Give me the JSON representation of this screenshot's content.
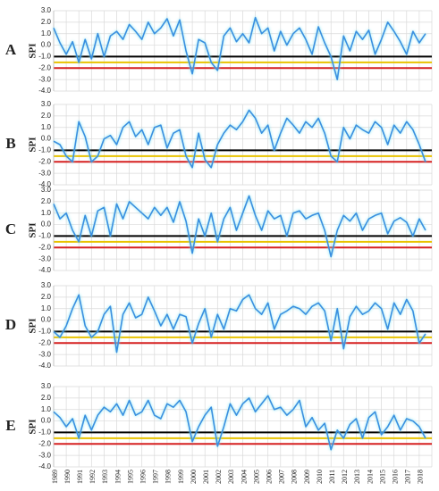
{
  "chart_data": [
    {
      "type": "line",
      "label": "A",
      "ylabel": "SPI",
      "ylim": [
        -4,
        3
      ],
      "yticks": [
        {
          "value": 3,
          "label": "3.0"
        },
        {
          "value": 2,
          "label": "2.0"
        },
        {
          "value": 1,
          "label": "1.0"
        },
        {
          "value": 0,
          "label": "0.0"
        },
        {
          "value": -1,
          "label": "-1.0"
        },
        {
          "value": -2,
          "label": "-2.0"
        },
        {
          "value": -3,
          "label": "-3.0"
        },
        {
          "value": -4,
          "label": "-4.0"
        }
      ],
      "thresholds": [
        {
          "value": -1,
          "color": "#000000"
        },
        {
          "value": -1.5,
          "color": "#e8c200"
        },
        {
          "value": -2,
          "color": "#d62020"
        }
      ],
      "x": [
        1989,
        1989.5,
        1990,
        1990.5,
        1991,
        1991.5,
        1992,
        1992.5,
        1993,
        1993.5,
        1994,
        1994.5,
        1995,
        1995.5,
        1996,
        1996.5,
        1997,
        1997.5,
        1998,
        1998.5,
        1999,
        1999.5,
        2000,
        2000.5,
        2001,
        2001.5,
        2002,
        2002.5,
        2003,
        2003.5,
        2004,
        2004.5,
        2005,
        2005.5,
        2006,
        2006.5,
        2007,
        2007.5,
        2008,
        2008.5,
        2009,
        2009.5,
        2010,
        2010.5,
        2011,
        2011.5,
        2012,
        2012.5,
        2013,
        2013.5,
        2014,
        2014.5,
        2015,
        2015.5,
        2016,
        2016.5,
        2017,
        2017.5,
        2018,
        2018.5
      ],
      "series": [
        {
          "color": "#3a8fe0",
          "values": [
            1.5,
            0.2,
            -0.8,
            0.3,
            -1.5,
            0.5,
            -1.2,
            1.0,
            -1.0,
            0.8,
            1.2,
            0.5,
            1.8,
            1.2,
            0.5,
            2.0,
            1.0,
            1.5,
            2.3,
            0.8,
            2.2,
            -0.5,
            -2.5,
            0.5,
            0.2,
            -1.5,
            -2.2,
            0.8,
            1.5,
            0.3,
            1.0,
            0.2,
            2.4,
            1.0,
            1.5,
            -0.5,
            1.2,
            0.0,
            1.0,
            1.5,
            0.5,
            -0.8,
            1.6,
            0.2,
            -1.0,
            -3.0,
            0.8,
            -0.5,
            1.2,
            0.5,
            1.3,
            -0.8,
            0.5,
            2.0,
            1.2,
            0.3,
            -0.8,
            1.2,
            0.2,
            1.0
          ]
        }
      ]
    },
    {
      "type": "line",
      "label": "B",
      "ylabel": "SPI",
      "ylim": [
        -4,
        3
      ],
      "yticks": [
        {
          "value": 3,
          "label": "3.0"
        },
        {
          "value": 2,
          "label": "2.0"
        },
        {
          "value": 1,
          "label": "1.0"
        },
        {
          "value": 0,
          "label": "0.0"
        },
        {
          "value": -1,
          "label": "-1.0"
        },
        {
          "value": -2,
          "label": "-2.0"
        },
        {
          "value": -3,
          "label": "-3.0"
        },
        {
          "value": -4,
          "label": "-4.0"
        }
      ],
      "thresholds": [
        {
          "value": -1,
          "color": "#000000"
        },
        {
          "value": -1.5,
          "color": "#e8c200"
        },
        {
          "value": -2,
          "color": "#d62020"
        }
      ],
      "x": [
        1989,
        1989.5,
        1990,
        1990.5,
        1991,
        1991.5,
        1992,
        1992.5,
        1993,
        1993.5,
        1994,
        1994.5,
        1995,
        1995.5,
        1996,
        1996.5,
        1997,
        1997.5,
        1998,
        1998.5,
        1999,
        1999.5,
        2000,
        2000.5,
        2001,
        2001.5,
        2002,
        2002.5,
        2003,
        2003.5,
        2004,
        2004.5,
        2005,
        2005.5,
        2006,
        2006.5,
        2007,
        2007.5,
        2008,
        2008.5,
        2009,
        2009.5,
        2010,
        2010.5,
        2011,
        2011.5,
        2012,
        2012.5,
        2013,
        2013.5,
        2014,
        2014.5,
        2015,
        2015.5,
        2016,
        2016.5,
        2017,
        2017.5,
        2018,
        2018.5
      ],
      "series": [
        {
          "color": "#3a8fe0",
          "values": [
            -0.2,
            -0.5,
            -1.5,
            -2.0,
            1.5,
            0.2,
            -2.0,
            -1.5,
            0.0,
            0.3,
            -0.5,
            1.0,
            1.5,
            0.2,
            0.8,
            -0.5,
            1.0,
            1.2,
            -0.8,
            0.5,
            0.8,
            -1.5,
            -2.5,
            0.5,
            -1.8,
            -2.5,
            -0.5,
            0.5,
            1.2,
            0.8,
            1.5,
            2.5,
            1.8,
            0.5,
            1.2,
            -1.0,
            0.5,
            1.8,
            1.2,
            0.5,
            1.5,
            1.0,
            1.8,
            0.5,
            -1.5,
            -2.0,
            1.0,
            0.0,
            1.2,
            0.8,
            0.5,
            1.5,
            1.0,
            -0.5,
            1.2,
            0.5,
            1.5,
            0.8,
            -0.5,
            -2.0
          ]
        }
      ]
    },
    {
      "type": "line",
      "label": "C",
      "ylabel": "SPI",
      "ylim": [
        -4,
        3
      ],
      "yticks": [
        {
          "value": 3,
          "label": "3.0"
        },
        {
          "value": 2,
          "label": "2.0"
        },
        {
          "value": 1,
          "label": "1.0"
        },
        {
          "value": 0,
          "label": "0.0"
        },
        {
          "value": -1,
          "label": "-1.0"
        },
        {
          "value": -2,
          "label": "-2.0"
        },
        {
          "value": -3,
          "label": "-3.0"
        },
        {
          "value": -4,
          "label": "-4.0"
        }
      ],
      "thresholds": [
        {
          "value": -1,
          "color": "#000000"
        },
        {
          "value": -1.5,
          "color": "#e8c200"
        },
        {
          "value": -2,
          "color": "#d62020"
        }
      ],
      "x": [
        1989,
        1989.5,
        1990,
        1990.5,
        1991,
        1991.5,
        1992,
        1992.5,
        1993,
        1993.5,
        1994,
        1994.5,
        1995,
        1995.5,
        1996,
        1996.5,
        1997,
        1997.5,
        1998,
        1998.5,
        1999,
        1999.5,
        2000,
        2000.5,
        2001,
        2001.5,
        2002,
        2002.5,
        2003,
        2003.5,
        2004,
        2004.5,
        2005,
        2005.5,
        2006,
        2006.5,
        2007,
        2007.5,
        2008,
        2008.5,
        2009,
        2009.5,
        2010,
        2010.5,
        2011,
        2011.5,
        2012,
        2012.5,
        2013,
        2013.5,
        2014,
        2014.5,
        2015,
        2015.5,
        2016,
        2016.5,
        2017,
        2017.5,
        2018,
        2018.5
      ],
      "series": [
        {
          "color": "#3a8fe0",
          "values": [
            1.8,
            0.5,
            1.0,
            -0.5,
            -1.5,
            0.8,
            -1.0,
            1.2,
            1.5,
            -1.0,
            1.8,
            0.5,
            2.0,
            1.5,
            1.0,
            0.5,
            1.5,
            0.8,
            1.5,
            0.2,
            2.0,
            0.3,
            -2.5,
            0.5,
            -1.0,
            1.0,
            -1.5,
            0.5,
            1.5,
            -0.5,
            1.0,
            2.5,
            0.8,
            -0.5,
            1.2,
            0.5,
            0.8,
            -1.0,
            1.0,
            1.2,
            0.5,
            0.8,
            1.0,
            -0.5,
            -2.8,
            -0.5,
            0.8,
            0.3,
            1.0,
            -0.5,
            0.5,
            0.8,
            1.0,
            -0.8,
            0.3,
            0.6,
            0.2,
            -1.0,
            0.5,
            -0.5
          ]
        }
      ]
    },
    {
      "type": "line",
      "label": "D",
      "ylabel": "SPI",
      "ylim": [
        -4,
        3
      ],
      "yticks": [
        {
          "value": 3,
          "label": "3.0"
        },
        {
          "value": 2,
          "label": "2.0"
        },
        {
          "value": 1,
          "label": "1.0"
        },
        {
          "value": 0,
          "label": "0.0"
        },
        {
          "value": -1,
          "label": "-1.0"
        },
        {
          "value": -2,
          "label": "-2.0"
        },
        {
          "value": -3,
          "label": "-3.0"
        },
        {
          "value": -4,
          "label": "-4.0"
        }
      ],
      "thresholds": [
        {
          "value": -1,
          "color": "#000000"
        },
        {
          "value": -1.5,
          "color": "#e8c200"
        },
        {
          "value": -2,
          "color": "#d62020"
        }
      ],
      "x": [
        1989,
        1989.5,
        1990,
        1990.5,
        1991,
        1991.5,
        1992,
        1992.5,
        1993,
        1993.5,
        1994,
        1994.5,
        1995,
        1995.5,
        1996,
        1996.5,
        1997,
        1997.5,
        1998,
        1998.5,
        1999,
        1999.5,
        2000,
        2000.5,
        2001,
        2001.5,
        2002,
        2002.5,
        2003,
        2003.5,
        2004,
        2004.5,
        2005,
        2005.5,
        2006,
        2006.5,
        2007,
        2007.5,
        2008,
        2008.5,
        2009,
        2009.5,
        2010,
        2010.5,
        2011,
        2011.5,
        2012,
        2012.5,
        2013,
        2013.5,
        2014,
        2014.5,
        2015,
        2015.5,
        2016,
        2016.5,
        2017,
        2017.5,
        2018,
        2018.5
      ],
      "series": [
        {
          "color": "#3a8fe0",
          "values": [
            -1.0,
            -1.5,
            -0.5,
            1.0,
            2.2,
            -0.5,
            -1.5,
            -1.0,
            0.5,
            1.2,
            -2.8,
            0.5,
            1.5,
            0.2,
            0.5,
            2.0,
            0.8,
            -0.5,
            0.5,
            -0.8,
            0.5,
            0.3,
            -2.0,
            -0.3,
            1.0,
            -1.5,
            0.5,
            -0.8,
            1.0,
            0.8,
            1.8,
            2.2,
            1.0,
            0.5,
            1.5,
            -0.8,
            0.5,
            0.8,
            1.2,
            1.0,
            0.5,
            1.2,
            1.5,
            0.8,
            -1.8,
            1.0,
            -2.5,
            0.3,
            1.2,
            0.5,
            0.8,
            1.5,
            1.0,
            -0.8,
            1.5,
            0.5,
            1.8,
            0.8,
            -2.0,
            -1.2
          ]
        }
      ]
    },
    {
      "type": "line",
      "label": "E",
      "ylabel": "SPI",
      "ylim": [
        -4,
        3
      ],
      "xlim": [
        1989,
        2019
      ],
      "yticks": [
        {
          "value": 3,
          "label": "3.0"
        },
        {
          "value": 2,
          "label": "2.0"
        },
        {
          "value": 1,
          "label": "1.0"
        },
        {
          "value": 0,
          "label": "0.0"
        },
        {
          "value": -1,
          "label": "-1.0"
        },
        {
          "value": -2,
          "label": "-2.0"
        },
        {
          "value": -3,
          "label": "-3.0"
        },
        {
          "value": -4,
          "label": "-4.0"
        }
      ],
      "xticks": [
        1989,
        1990,
        1991,
        1992,
        1993,
        1994,
        1995,
        1996,
        1997,
        1998,
        1999,
        2000,
        2001,
        2002,
        2003,
        2004,
        2005,
        2006,
        2007,
        2008,
        2009,
        2010,
        2011,
        2012,
        2013,
        2014,
        2015,
        2016,
        2017,
        2018
      ],
      "thresholds": [
        {
          "value": -1,
          "color": "#000000"
        },
        {
          "value": -1.5,
          "color": "#e8c200"
        },
        {
          "value": -2,
          "color": "#d62020"
        }
      ],
      "x": [
        1989,
        1989.5,
        1990,
        1990.5,
        1991,
        1991.5,
        1992,
        1992.5,
        1993,
        1993.5,
        1994,
        1994.5,
        1995,
        1995.5,
        1996,
        1996.5,
        1997,
        1997.5,
        1998,
        1998.5,
        1999,
        1999.5,
        2000,
        2000.5,
        2001,
        2001.5,
        2002,
        2002.5,
        2003,
        2003.5,
        2004,
        2004.5,
        2005,
        2005.5,
        2006,
        2006.5,
        2007,
        2007.5,
        2008,
        2008.5,
        2009,
        2009.5,
        2010,
        2010.5,
        2011,
        2011.5,
        2012,
        2012.5,
        2013,
        2013.5,
        2014,
        2014.5,
        2015,
        2015.5,
        2016,
        2016.5,
        2017,
        2017.5,
        2018,
        2018.5
      ],
      "series": [
        {
          "color": "#3a8fe0",
          "values": [
            0.8,
            0.3,
            -0.5,
            0.2,
            -1.5,
            0.5,
            -0.8,
            0.5,
            1.2,
            0.8,
            1.5,
            0.5,
            1.8,
            0.5,
            0.8,
            1.8,
            0.5,
            0.2,
            1.5,
            1.2,
            1.8,
            0.8,
            -1.8,
            -0.5,
            0.5,
            1.2,
            -2.2,
            -0.5,
            1.5,
            0.5,
            1.5,
            2.0,
            0.8,
            1.5,
            2.2,
            1.0,
            1.2,
            0.5,
            1.0,
            1.8,
            -0.5,
            0.3,
            -0.8,
            -0.2,
            -2.5,
            -0.8,
            -1.5,
            -0.3,
            0.2,
            -1.5,
            0.3,
            0.8,
            -1.2,
            -0.5,
            0.5,
            -0.8,
            0.2,
            0.0,
            -0.5,
            -1.5
          ]
        }
      ]
    }
  ]
}
